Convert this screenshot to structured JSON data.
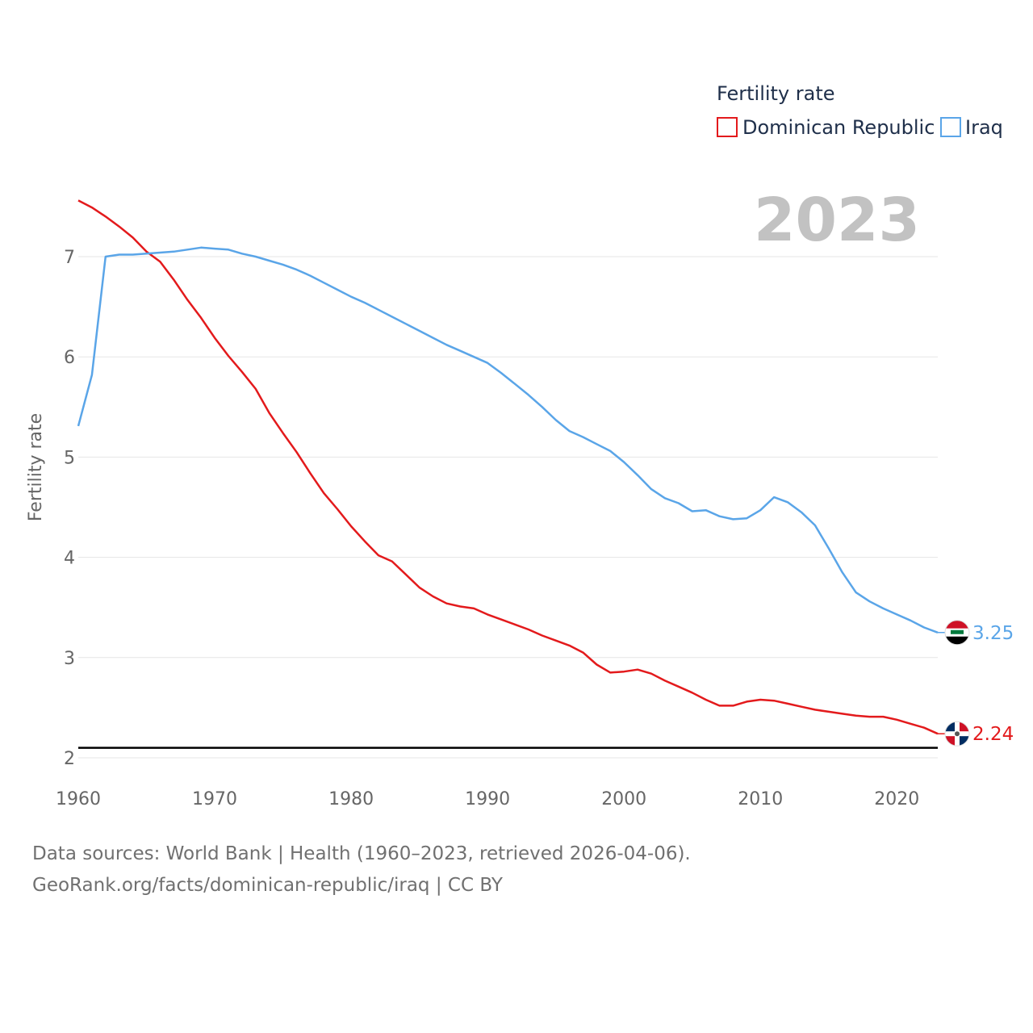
{
  "chart_data": {
    "type": "line",
    "title": "Fertility rate",
    "ylabel": "Fertility rate",
    "xlabel": "",
    "current_year_label": "2023",
    "xlim": [
      1960,
      2023
    ],
    "ylim": [
      2,
      7.6
    ],
    "x_ticks": [
      1960,
      1970,
      1980,
      1990,
      2000,
      2010,
      2020
    ],
    "y_ticks": [
      2,
      3,
      4,
      5,
      6,
      7
    ],
    "reference_line": 2.1,
    "grid": true,
    "legend_position": "top-right",
    "years": [
      1960,
      1961,
      1962,
      1963,
      1964,
      1965,
      1966,
      1967,
      1968,
      1969,
      1970,
      1971,
      1972,
      1973,
      1974,
      1975,
      1976,
      1977,
      1978,
      1979,
      1980,
      1981,
      1982,
      1983,
      1984,
      1985,
      1986,
      1987,
      1988,
      1989,
      1990,
      1991,
      1992,
      1993,
      1994,
      1995,
      1996,
      1997,
      1998,
      1999,
      2000,
      2001,
      2002,
      2003,
      2004,
      2005,
      2006,
      2007,
      2008,
      2009,
      2010,
      2011,
      2012,
      2013,
      2014,
      2015,
      2016,
      2017,
      2018,
      2019,
      2020,
      2021,
      2022,
      2023
    ],
    "series": [
      {
        "name": "Dominican Republic",
        "color": "#e31a1c",
        "end_label": "2.24",
        "values": [
          7.56,
          7.49,
          7.4,
          7.3,
          7.19,
          7.05,
          6.95,
          6.77,
          6.57,
          6.39,
          6.19,
          6.01,
          5.85,
          5.68,
          5.44,
          5.24,
          5.05,
          4.84,
          4.64,
          4.48,
          4.31,
          4.16,
          4.02,
          3.96,
          3.83,
          3.7,
          3.61,
          3.54,
          3.51,
          3.49,
          3.43,
          3.38,
          3.33,
          3.28,
          3.22,
          3.17,
          3.12,
          3.05,
          2.93,
          2.85,
          2.86,
          2.88,
          2.84,
          2.77,
          2.71,
          2.65,
          2.58,
          2.52,
          2.52,
          2.56,
          2.58,
          2.57,
          2.54,
          2.51,
          2.48,
          2.46,
          2.44,
          2.42,
          2.41,
          2.41,
          2.38,
          2.34,
          2.3,
          2.24
        ]
      },
      {
        "name": "Iraq",
        "color": "#5aa5e8",
        "end_label": "3.25",
        "values": [
          5.31,
          5.82,
          7.0,
          7.02,
          7.02,
          7.03,
          7.04,
          7.05,
          7.07,
          7.09,
          7.08,
          7.07,
          7.03,
          7.0,
          6.96,
          6.92,
          6.87,
          6.81,
          6.74,
          6.67,
          6.6,
          6.54,
          6.47,
          6.4,
          6.33,
          6.26,
          6.19,
          6.12,
          6.06,
          6.0,
          5.94,
          5.84,
          5.73,
          5.62,
          5.5,
          5.37,
          5.26,
          5.2,
          5.13,
          5.06,
          4.95,
          4.82,
          4.68,
          4.59,
          4.54,
          4.46,
          4.47,
          4.41,
          4.38,
          4.39,
          4.47,
          4.6,
          4.55,
          4.45,
          4.32,
          4.09,
          3.85,
          3.65,
          3.56,
          3.49,
          3.43,
          3.37,
          3.3,
          3.25
        ]
      }
    ]
  },
  "footer": {
    "line1": "Data sources: World Bank | Health (1960–2023, retrieved 2026-04-06).",
    "line2": "GeoRank.org/facts/dominican-republic/iraq | CC BY"
  }
}
